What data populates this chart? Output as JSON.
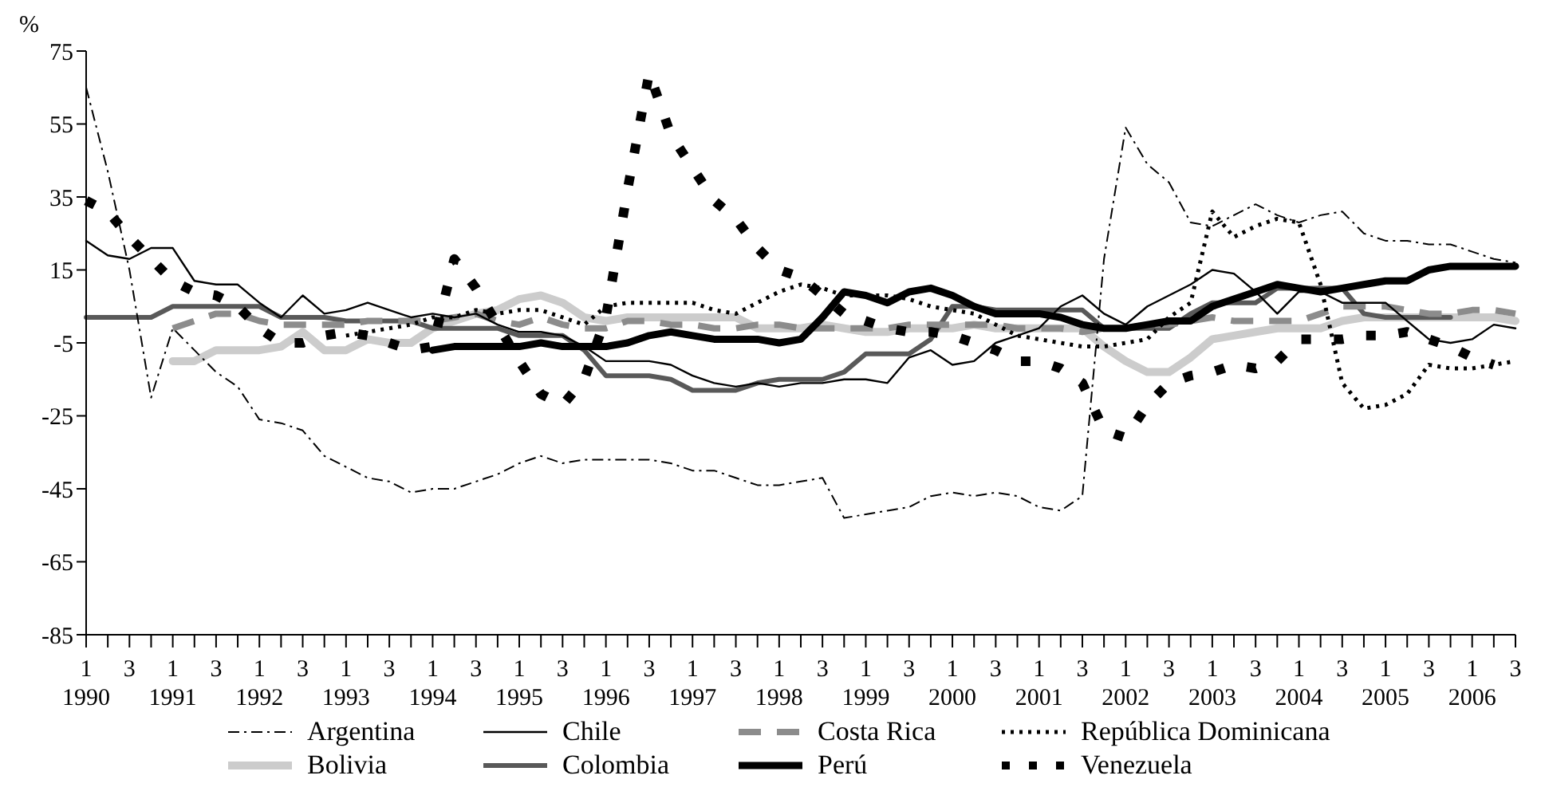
{
  "chart_data": {
    "type": "line",
    "ylabel": "%",
    "categories": [
      "1 1990",
      null,
      "3",
      null,
      "1 1991",
      null,
      "3",
      null,
      "1 1992",
      null,
      "3",
      null,
      "1 1993",
      null,
      "3",
      null,
      "1 1994",
      null,
      "3",
      null,
      "1 1995",
      null,
      "3",
      null,
      "1 1996",
      null,
      "3",
      null,
      "1 1997",
      null,
      "3",
      null,
      "1 1998",
      null,
      "3",
      null,
      "1 1999",
      null,
      "3",
      null,
      "1 2000",
      null,
      "3",
      null,
      "1 2001",
      null,
      "3",
      null,
      "1 2002",
      null,
      "3",
      null,
      "1 2003",
      null,
      "3",
      null,
      "1 2004",
      null,
      "3",
      null,
      "1 2005",
      null,
      "3",
      null,
      "1 2006",
      null,
      "3"
    ],
    "series": [
      {
        "name": "Argentina",
        "color": "#000000",
        "line_style": "dashed",
        "values": [
          65,
          42,
          15,
          -20,
          -1,
          -7,
          -13,
          -17,
          -26,
          -27,
          -29,
          -36,
          -39,
          -42,
          -43,
          -46,
          -45,
          -45,
          -43,
          -41,
          -38,
          -36,
          -38,
          -37,
          -37,
          -37,
          -37,
          -38,
          -40,
          -40,
          -42,
          -44,
          -44,
          -43,
          -42,
          -53,
          -52,
          -51,
          -50,
          -47,
          -46,
          -47,
          -46,
          -47,
          -50,
          -51,
          -47,
          18,
          54,
          44,
          39,
          28,
          27,
          30,
          33,
          30,
          28,
          30,
          31,
          25,
          23,
          23,
          22,
          22,
          20,
          18,
          17
        ]
      },
      {
        "name": "Chile",
        "color": "#000000",
        "line_style": "solid",
        "values": [
          23,
          19,
          18,
          21,
          21,
          12,
          11,
          11,
          6,
          2,
          8,
          3,
          4,
          6,
          4,
          2,
          3,
          2,
          3,
          0,
          -2,
          -2,
          -3,
          -6,
          -10,
          -10,
          -10,
          -11,
          -14,
          -16,
          -17,
          -16,
          -17,
          -16,
          -16,
          -15,
          -15,
          -16,
          -9,
          -7,
          -11,
          -10,
          -5,
          -3,
          -1,
          5,
          8,
          3,
          0,
          5,
          8,
          11,
          15,
          14,
          9,
          3,
          9,
          9,
          6,
          6,
          6,
          1,
          -4,
          -5,
          -4,
          0,
          -1
        ]
      },
      {
        "name": "Costa Rica",
        "color": "#8c8c8c",
        "line_style": "dashed",
        "values": [
          null,
          null,
          null,
          null,
          -1,
          1,
          3,
          3,
          1,
          0,
          0,
          0,
          0,
          1,
          1,
          1,
          1,
          2,
          3,
          1,
          0,
          2,
          0,
          -1,
          -1,
          1,
          1,
          0,
          0,
          -1,
          -1,
          0,
          0,
          -1,
          -1,
          -1,
          -1,
          -1,
          0,
          0,
          0,
          0,
          0,
          -1,
          -1,
          -1,
          -2,
          -1,
          -1,
          0,
          0,
          1,
          2,
          1,
          1,
          1,
          1,
          3,
          5,
          5,
          5,
          4,
          3,
          3,
          4,
          4,
          3
        ]
      },
      {
        "name": "República Dominicana",
        "color": "#000000",
        "line_style": "dotted",
        "values": [
          null,
          null,
          null,
          null,
          null,
          null,
          null,
          null,
          null,
          null,
          null,
          null,
          -3,
          -2,
          -1,
          0,
          2,
          2,
          4,
          3,
          4,
          4,
          2,
          0,
          5,
          6,
          6,
          6,
          6,
          4,
          3,
          6,
          9,
          11,
          10,
          8,
          8,
          8,
          7,
          5,
          4,
          3,
          0,
          -3,
          -4,
          -5,
          -6,
          -6,
          -5,
          -4,
          2,
          6,
          31,
          24,
          27,
          29,
          28,
          11,
          -16,
          -23,
          -22,
          -19,
          -11,
          -12,
          -12,
          -11,
          -10
        ]
      },
      {
        "name": "Bolivia",
        "color": "#cccccc",
        "line_style": "solid",
        "values": [
          null,
          null,
          null,
          null,
          -10,
          -10,
          -7,
          -7,
          -7,
          -6,
          -2,
          -7,
          -7,
          -4,
          -5,
          -5,
          -1,
          1,
          3,
          4,
          7,
          8,
          6,
          2,
          1,
          2,
          2,
          2,
          2,
          2,
          2,
          -1,
          -1,
          -1,
          0,
          -1,
          -2,
          -2,
          -1,
          -1,
          -1,
          0,
          -1,
          -1,
          -1,
          -1,
          -1,
          -6,
          -10,
          -13,
          -13,
          -9,
          -4,
          -3,
          -2,
          -1,
          -1,
          -1,
          1,
          2,
          2,
          2,
          2,
          2,
          2,
          2,
          1
        ]
      },
      {
        "name": "Colombia",
        "color": "#595959",
        "line_style": "solid",
        "values": [
          2,
          2,
          2,
          2,
          5,
          5,
          5,
          5,
          5,
          2,
          2,
          2,
          1,
          1,
          1,
          1,
          -1,
          -1,
          -1,
          -1,
          -3,
          -3,
          -3,
          -7,
          -14,
          -14,
          -14,
          -15,
          -18,
          -18,
          -18,
          -16,
          -15,
          -15,
          -15,
          -13,
          -8,
          -8,
          -8,
          -4,
          5,
          5,
          4,
          4,
          4,
          4,
          4,
          -1,
          -1,
          -1,
          -1,
          3,
          6,
          6,
          6,
          10,
          10,
          10,
          10,
          3,
          2,
          2,
          2,
          2,
          null,
          null,
          null
        ]
      },
      {
        "name": "Perú",
        "color": "#000000",
        "line_style": "solid",
        "values": [
          null,
          null,
          null,
          null,
          null,
          null,
          null,
          null,
          null,
          null,
          null,
          null,
          null,
          null,
          null,
          null,
          -7,
          -6,
          -6,
          -6,
          -6,
          -5,
          -6,
          -6,
          -6,
          -5,
          -3,
          -2,
          -3,
          -4,
          -4,
          -4,
          -5,
          -4,
          2,
          9,
          8,
          6,
          9,
          10,
          8,
          5,
          3,
          3,
          3,
          2,
          0,
          -1,
          -1,
          0,
          1,
          1,
          5,
          7,
          9,
          11,
          10,
          9,
          10,
          11,
          12,
          12,
          15,
          16,
          16,
          16,
          16
        ]
      },
      {
        "name": "Venezuela",
        "color": "#000000",
        "line_style": "dashed",
        "values": [
          34,
          31,
          24,
          18,
          12,
          9,
          8,
          5,
          -1,
          -5,
          -5,
          -3,
          -2,
          -3,
          -5,
          -7,
          -6,
          18,
          10,
          0,
          -10,
          -19,
          -22,
          -15,
          2,
          37,
          69,
          52,
          43,
          34,
          29,
          21,
          15,
          13,
          8,
          3,
          1,
          -1,
          -2,
          -2,
          -3,
          -5,
          -7,
          -10,
          -10,
          -12,
          -16,
          -29,
          -31,
          -22,
          -16,
          -14,
          -13,
          -11,
          -12,
          -10,
          -4,
          -4,
          -4,
          -3,
          -3,
          -2,
          -4,
          -6,
          -9,
          -11,
          null
        ]
      }
    ],
    "ylim": [
      -85,
      75
    ],
    "yticks": [
      -85,
      -65,
      -45,
      -25,
      -5,
      15,
      35,
      55,
      75
    ],
    "grid": false,
    "legend": "bottom"
  }
}
